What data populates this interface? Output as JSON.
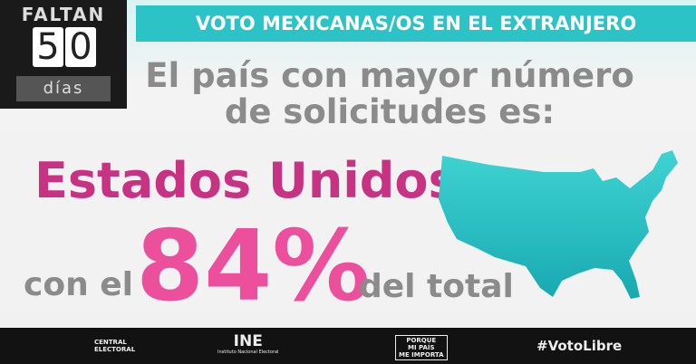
{
  "countdown": {
    "label": "FALTAN",
    "digits": [
      "5",
      "0"
    ],
    "unit": "días"
  },
  "header": {
    "title": "VOTO MEXICANAS/OS EN EL EXTRANJERO"
  },
  "headline": {
    "lines": [
      "El país con mayor número",
      "de solicitudes es:"
    ]
  },
  "country": "Estados Unidos",
  "share": {
    "prefix": "con el",
    "value": "84%",
    "suffix": "del total"
  },
  "footer": {
    "central": [
      "CENTRAL",
      "ELECTORAL"
    ],
    "ine": {
      "name": "INE",
      "subtitle": "Instituto Nacional Electoral"
    },
    "campaign": [
      "PORQUE",
      "MI PAÍS",
      "ME IMPORTA"
    ],
    "hashtag": "#VotoLibre"
  }
}
